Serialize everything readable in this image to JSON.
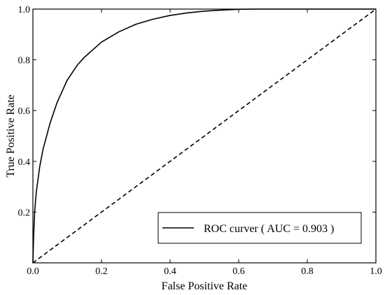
{
  "chart_data": {
    "type": "line",
    "title": "",
    "xlabel": "False Positive Rate",
    "ylabel": "True Positive Rate",
    "xlim": [
      0.0,
      1.0
    ],
    "ylim": [
      0.0,
      1.0
    ],
    "xticks": [
      "0.0",
      "0.2",
      "0.4",
      "0.6",
      "0.8",
      "1.0"
    ],
    "yticks": [
      "0.2",
      "0.4",
      "0.6",
      "0.8",
      "1.0"
    ],
    "grid": false,
    "legend_position": "bottom-right",
    "series": [
      {
        "name": "ROC curver ( AUC = 0.903 )",
        "style": "solid",
        "color": "#000000",
        "x": [
          0.0,
          0.002,
          0.005,
          0.01,
          0.02,
          0.03,
          0.05,
          0.07,
          0.1,
          0.13,
          0.15,
          0.2,
          0.25,
          0.3,
          0.35,
          0.4,
          0.45,
          0.5,
          0.55,
          0.6,
          0.65,
          0.7,
          0.8,
          0.9,
          1.0
        ],
        "y": [
          0.0,
          0.1,
          0.2,
          0.28,
          0.38,
          0.45,
          0.55,
          0.63,
          0.72,
          0.78,
          0.81,
          0.87,
          0.91,
          0.94,
          0.96,
          0.975,
          0.985,
          0.992,
          0.996,
          0.999,
          1.0,
          1.0,
          1.0,
          1.0,
          1.0
        ]
      },
      {
        "style": "dashed",
        "color": "#000000",
        "x": [
          0.0,
          1.0
        ],
        "y": [
          0.0,
          1.0
        ]
      }
    ]
  }
}
